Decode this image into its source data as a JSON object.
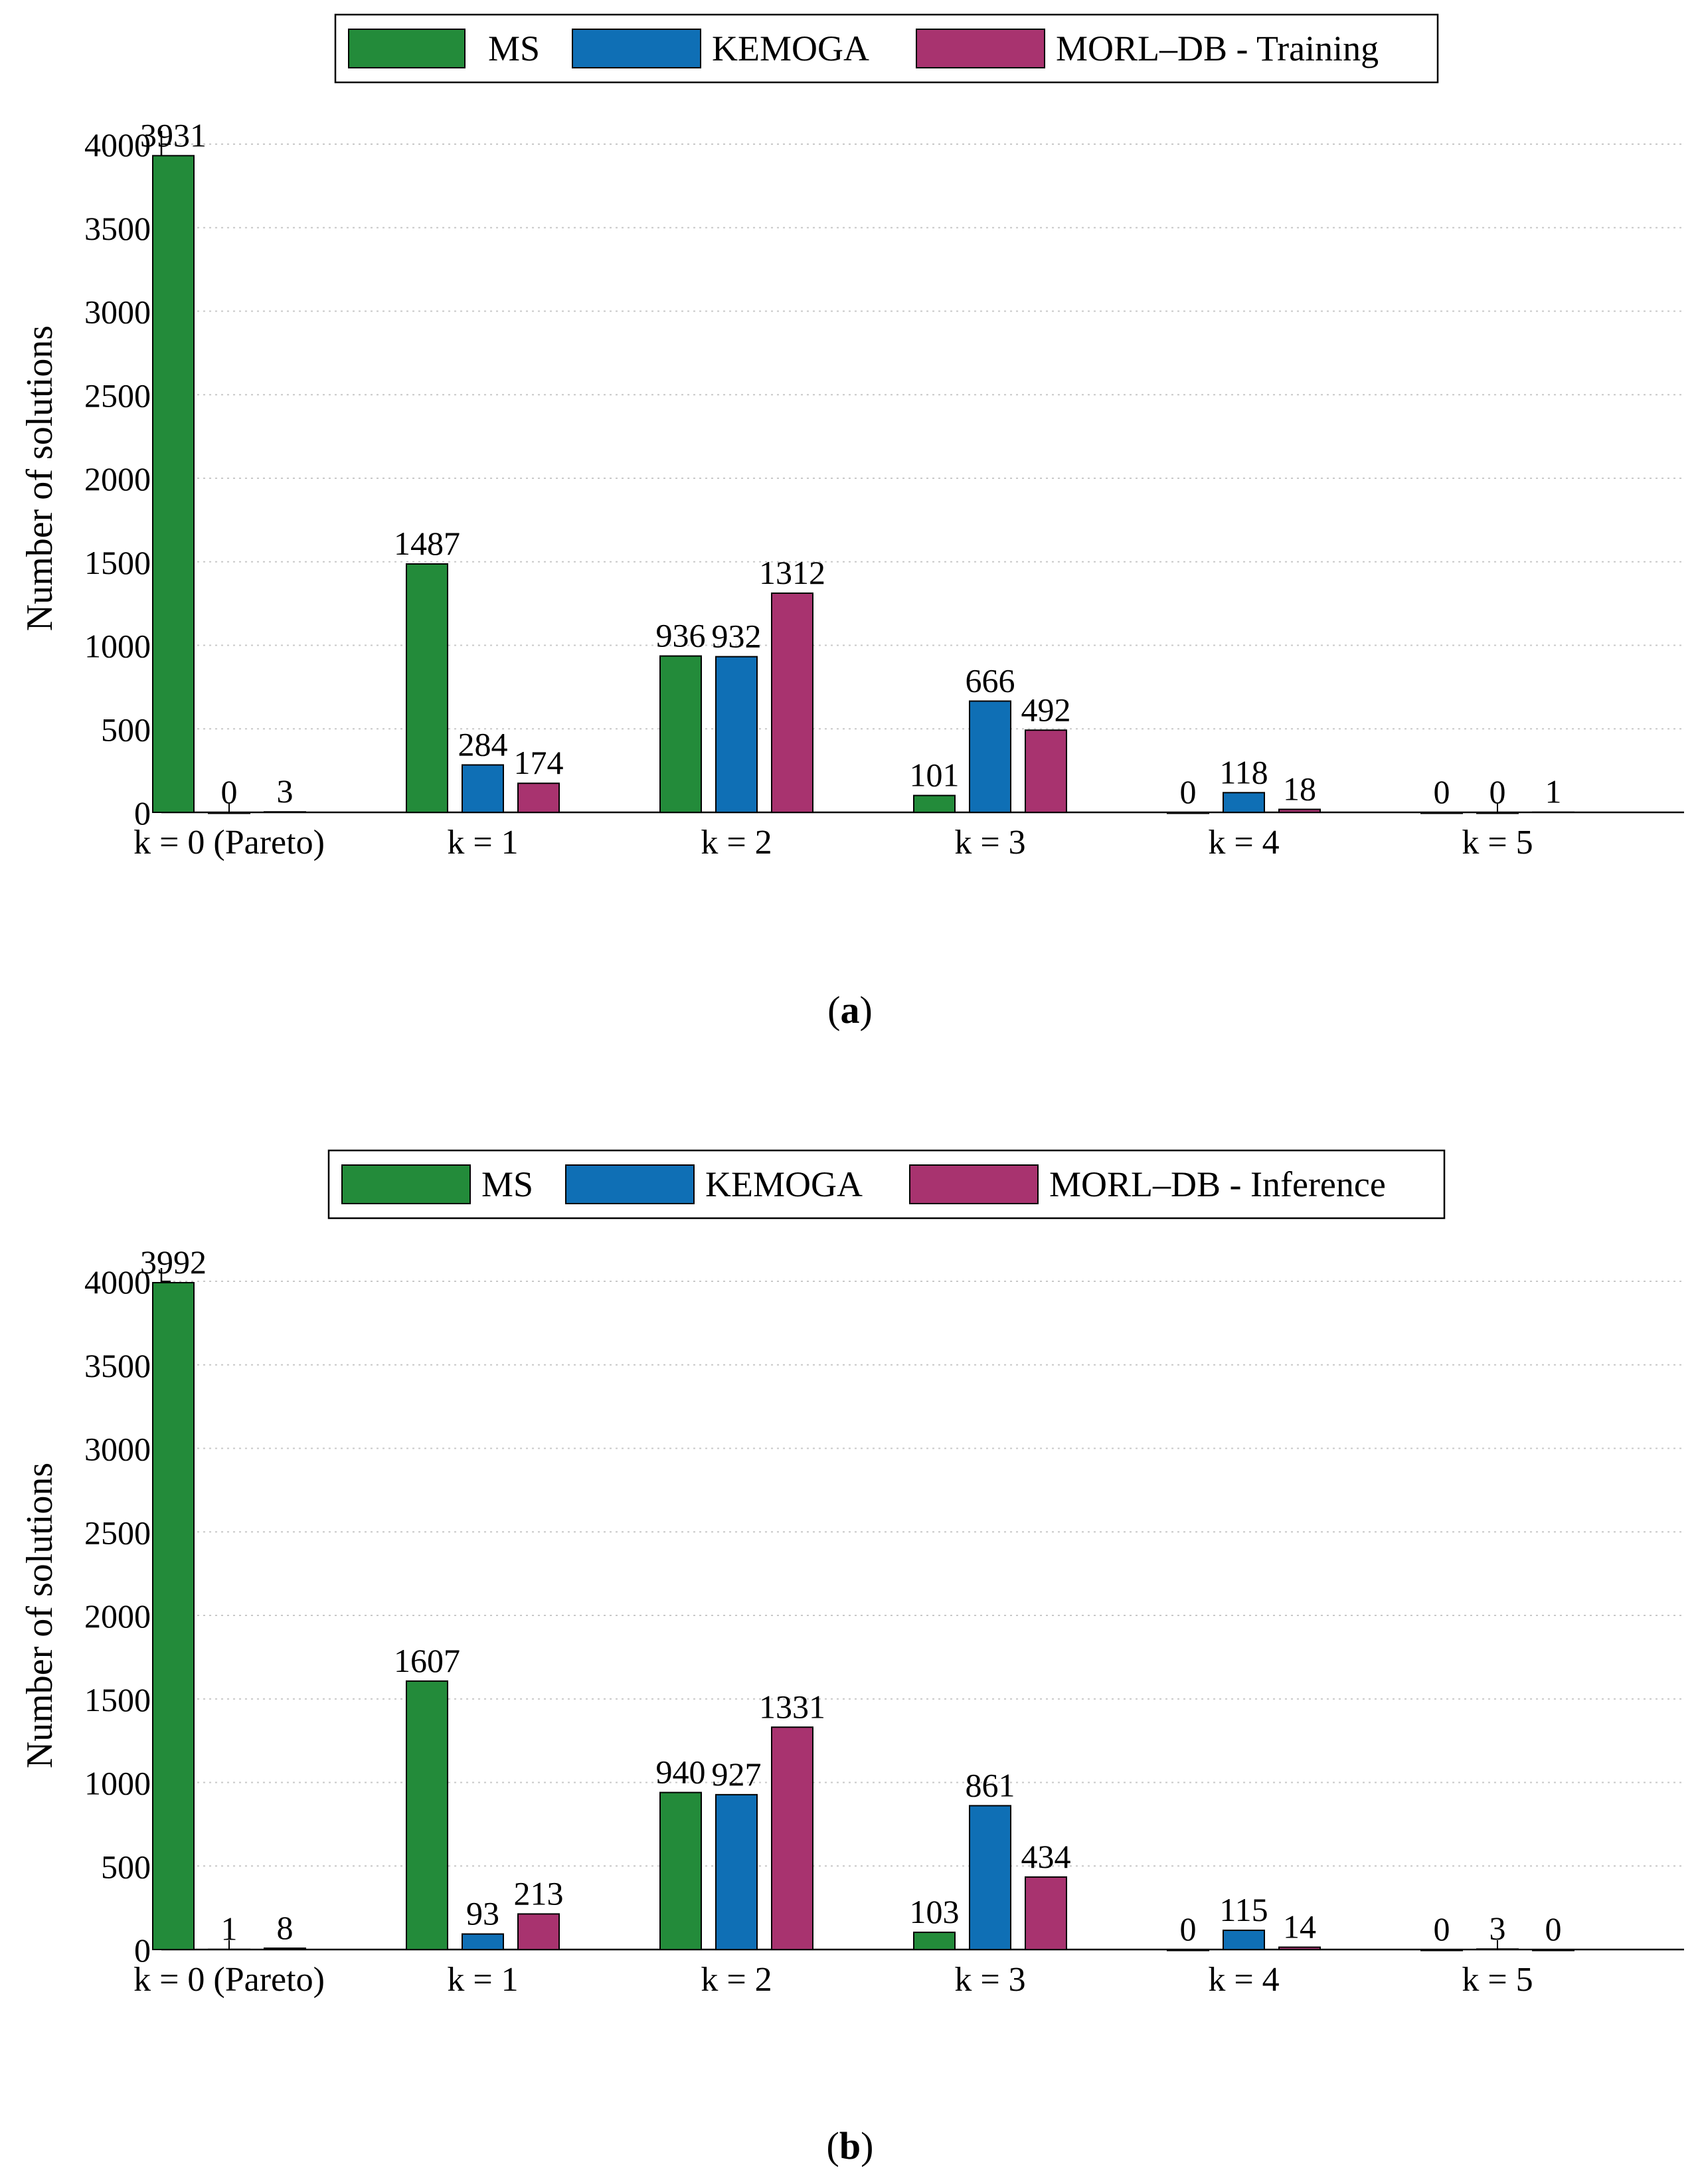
{
  "colors": {
    "ms": "#238b3a",
    "kemoga": "#0f6fb5",
    "morl": "#a8336f",
    "grid": "#c8c8c8"
  },
  "chart_data": [
    {
      "type": "bar",
      "panel_label": "a",
      "categories": [
        "k = 0 (Pareto)",
        "k = 1",
        "k = 2",
        "k = 3",
        "k = 4",
        "k = 5"
      ],
      "series": [
        {
          "name": "MS",
          "values": [
            3931,
            1487,
            936,
            101,
            0,
            0
          ]
        },
        {
          "name": "KEMOGA",
          "values": [
            0,
            284,
            932,
            666,
            118,
            0
          ]
        },
        {
          "name": "MORL–DB - Training",
          "values": [
            3,
            174,
            1312,
            492,
            18,
            1
          ]
        }
      ],
      "ylabel": "Number of solutions",
      "ylim": [
        0,
        4000
      ],
      "yticks": [
        0,
        500,
        1000,
        1500,
        2000,
        2500,
        3000,
        3500,
        4000
      ],
      "grid": "horizontal dotted",
      "legend": "top-center"
    },
    {
      "type": "bar",
      "panel_label": "b",
      "categories": [
        "k = 0 (Pareto)",
        "k = 1",
        "k = 2",
        "k = 3",
        "k = 4",
        "k = 5"
      ],
      "series": [
        {
          "name": "MS",
          "values": [
            3992,
            1607,
            940,
            103,
            0,
            0
          ]
        },
        {
          "name": "KEMOGA",
          "values": [
            1,
            93,
            927,
            861,
            115,
            3
          ]
        },
        {
          "name": "MORL–DB - Inference",
          "values": [
            8,
            213,
            1331,
            434,
            14,
            0
          ]
        }
      ],
      "ylabel": "Number of solutions",
      "ylim": [
        0,
        4000
      ],
      "yticks": [
        0,
        500,
        1000,
        1500,
        2000,
        2500,
        3000,
        3500,
        4000
      ],
      "grid": "horizontal dotted",
      "legend": "top-center"
    }
  ]
}
